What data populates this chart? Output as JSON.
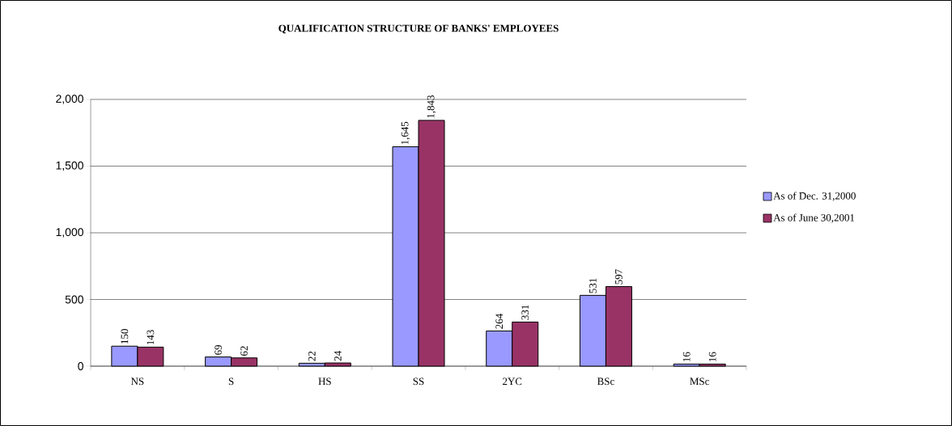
{
  "chart_data": {
    "type": "bar",
    "title": "QUALIFICATION STRUCTURE OF BANKS' EMPLOYEES",
    "categories": [
      "NS",
      "S",
      "HS",
      "SS",
      "2YC",
      "BSc",
      "MSc"
    ],
    "series": [
      {
        "name": "As of Dec. 31,2000",
        "color": "#9999ff",
        "values": [
          150,
          69,
          22,
          1645,
          264,
          531,
          16
        ],
        "value_labels": [
          "150",
          "69",
          "22",
          "1,645",
          "264",
          "531",
          "16"
        ]
      },
      {
        "name": "As of June 30,2001",
        "color": "#993366",
        "values": [
          143,
          62,
          24,
          1843,
          331,
          597,
          16
        ],
        "value_labels": [
          "143",
          "62",
          "24",
          "1,843",
          "331",
          "597",
          "16"
        ]
      }
    ],
    "ylim": [
      0,
      2000
    ],
    "yticks": [
      0,
      {
        "value": 500,
        "label": "500"
      },
      {
        "value": 1000,
        "label": "1,000"
      },
      {
        "value": 1500,
        "label": "1,500"
      },
      {
        "value": 2000,
        "label": "2,000"
      }
    ],
    "grid": "y",
    "legend": "right"
  }
}
